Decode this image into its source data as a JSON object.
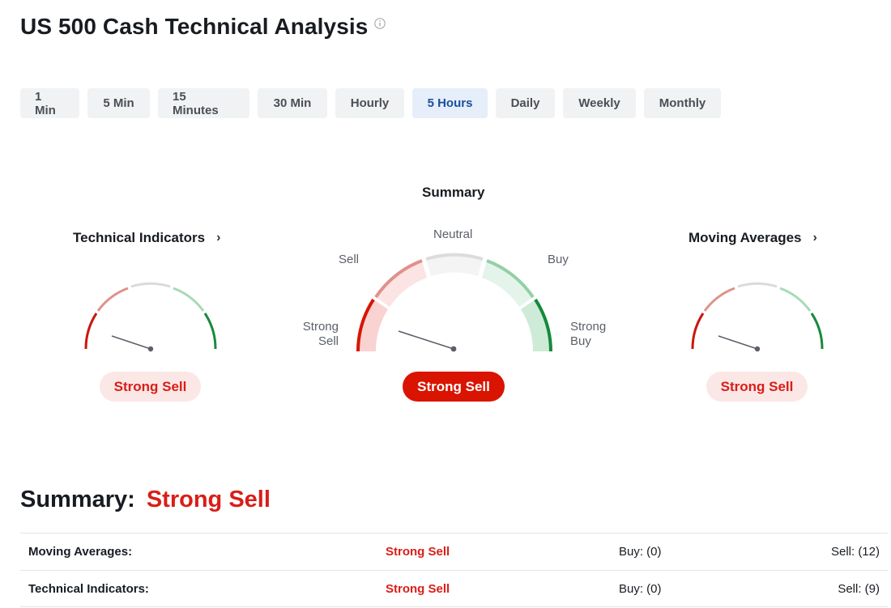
{
  "page": {
    "title": "US 500 Cash Technical Analysis",
    "info_icon": "info-icon"
  },
  "tabs": [
    {
      "label": "1 Min",
      "active": false
    },
    {
      "label": "5 Min",
      "active": false
    },
    {
      "label": "15 Minutes",
      "active": false
    },
    {
      "label": "30 Min",
      "active": false
    },
    {
      "label": "Hourly",
      "active": false
    },
    {
      "label": "5 Hours",
      "active": true
    },
    {
      "label": "Daily",
      "active": false
    },
    {
      "label": "Weekly",
      "active": false
    },
    {
      "label": "Monthly",
      "active": false
    }
  ],
  "gauges": {
    "summary": {
      "title": "Summary",
      "labels": {
        "strong_sell": "Strong Sell",
        "sell": "Sell",
        "neutral": "Neutral",
        "buy": "Buy",
        "strong_buy": "Strong Buy"
      },
      "signal": "Strong Sell"
    },
    "technical_indicators": {
      "title": "Technical Indicators",
      "signal": "Strong Sell"
    },
    "moving_averages": {
      "title": "Moving Averages",
      "signal": "Strong Sell"
    }
  },
  "colors": {
    "strong_sell": "#d91400",
    "sell": "#e88a86",
    "neutral": "#dcdcdc",
    "buy": "#8fd0a4",
    "strong_buy": "#138a3c",
    "tab_active_bg": "#e6eefa",
    "tab_active_text": "#1b4f9c"
  },
  "summary": {
    "label": "Summary:",
    "value": "Strong Sell"
  },
  "table": [
    {
      "name": "Moving Averages:",
      "signal": "Strong Sell",
      "buy": "Buy: (0)",
      "sell": "Sell: (12)"
    },
    {
      "name": "Technical Indicators:",
      "signal": "Strong Sell",
      "buy": "Buy: (0)",
      "sell": "Sell: (9)"
    }
  ]
}
